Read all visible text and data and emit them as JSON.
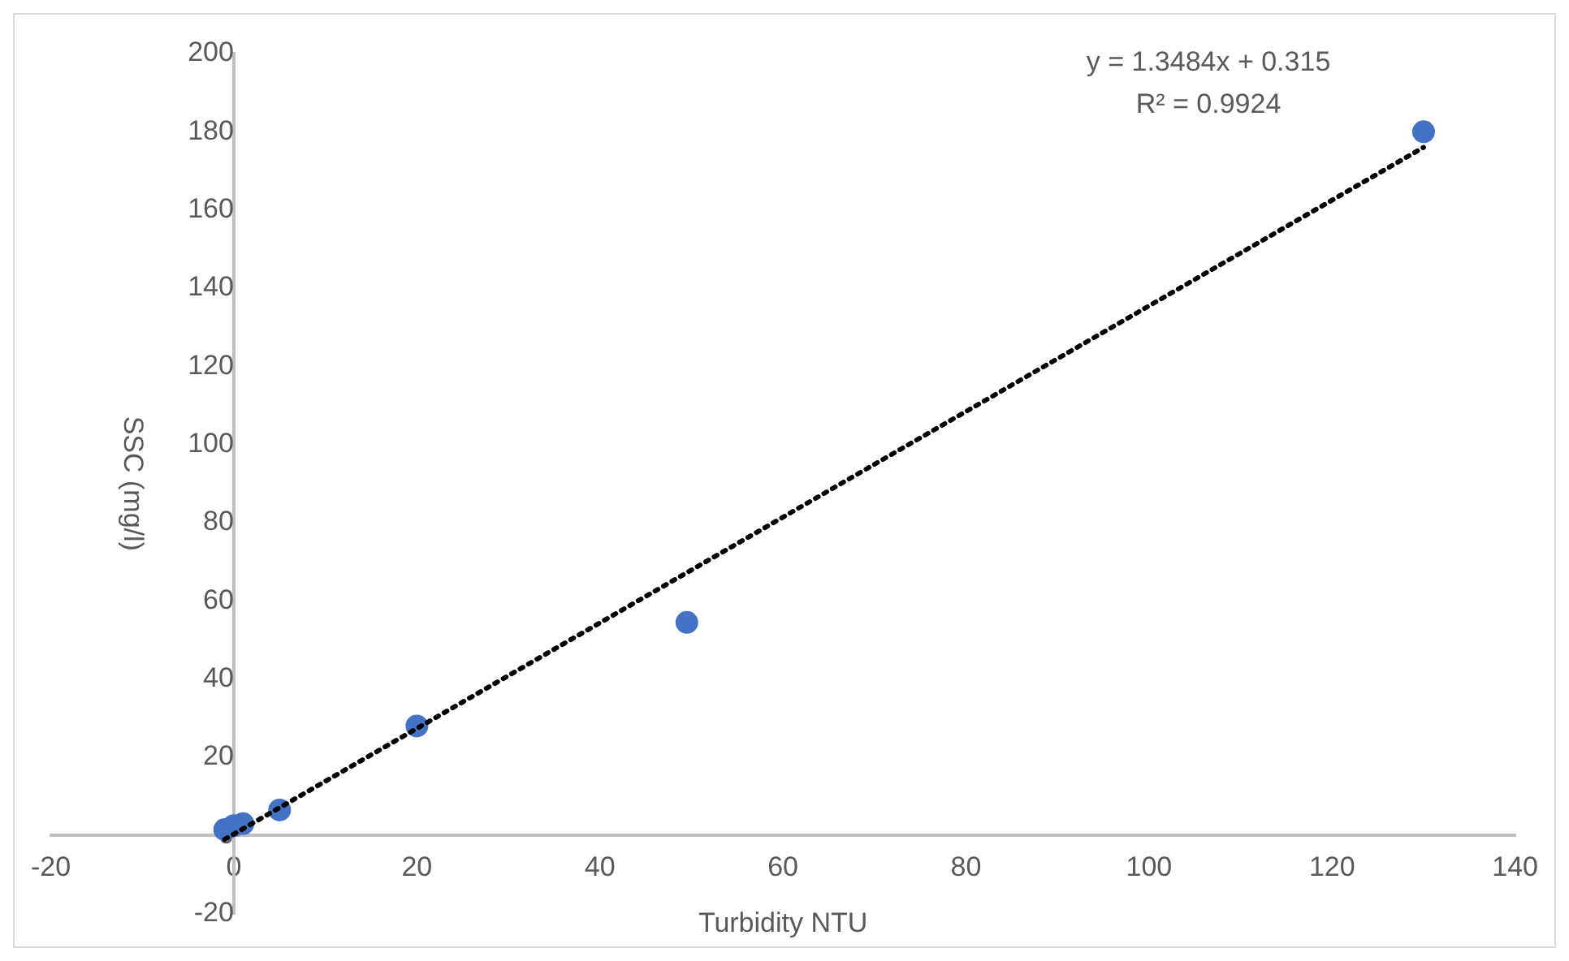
{
  "chart_data": {
    "type": "scatter",
    "xlabel": "Turbidity NTU",
    "ylabel": "SSC (mg/l)",
    "series": [
      {
        "color": "#4472c4",
        "x": [
          -1,
          0,
          1,
          5,
          20,
          49.5,
          130
        ],
        "values": [
          1.5,
          2.5,
          3,
          6.5,
          28,
          54.5,
          180
        ],
        "marker": "circle"
      },
      {
        "type": "line",
        "color": "#000000",
        "x": [
          -1,
          130
        ],
        "values": [
          -1,
          176
        ],
        "line_style": "dotted",
        "marker": "none"
      }
    ],
    "xlim": [
      -20,
      140
    ],
    "xticks": [
      -20,
      0,
      20,
      40,
      60,
      80,
      100,
      120,
      140
    ],
    "ylim": [
      -20,
      200
    ],
    "yticks": [
      -20,
      0,
      20,
      40,
      60,
      80,
      100,
      120,
      140,
      160,
      180,
      200
    ],
    "grid": false,
    "legend": false,
    "annotations": [
      "y = 1.3484x + 0.315",
      "R² = 0.9924"
    ]
  }
}
